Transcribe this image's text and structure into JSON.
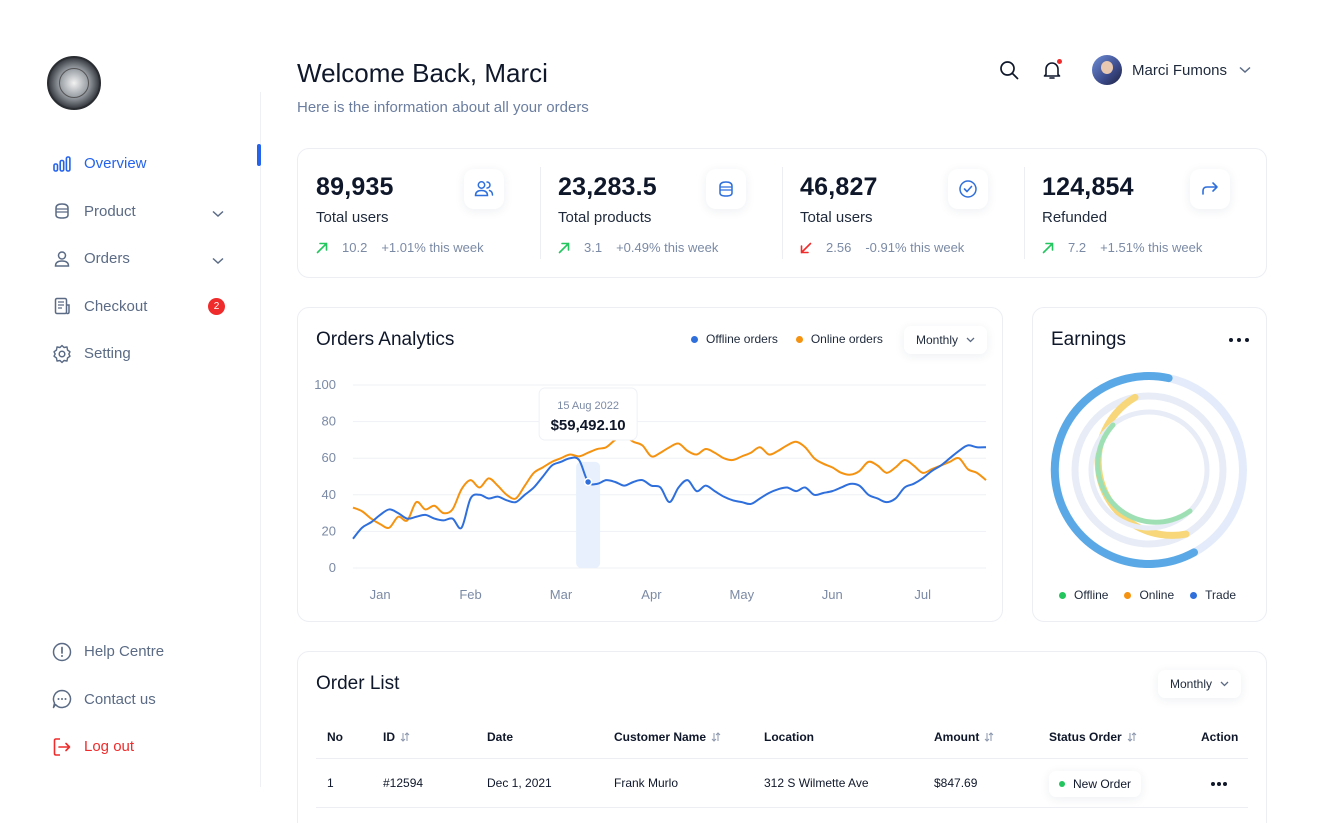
{
  "sidebar": {
    "items": [
      {
        "label": "Overview",
        "icon": "bar-chart-icon"
      },
      {
        "label": "Product",
        "icon": "box-icon"
      },
      {
        "label": "Orders",
        "icon": "user-icon"
      },
      {
        "label": "Checkout",
        "icon": "receipt-icon",
        "badge": "2"
      },
      {
        "label": "Setting",
        "icon": "gear-icon"
      }
    ],
    "bottom": [
      {
        "label": "Help Centre",
        "icon": "info-icon"
      },
      {
        "label": "Contact us",
        "icon": "chat-icon"
      },
      {
        "label": "Log out",
        "icon": "logout-icon"
      }
    ]
  },
  "header": {
    "title": "Welcome Back, Marci",
    "subtitle": "Here is the information about all your orders",
    "user_name": "Marci Fumons"
  },
  "stats": [
    {
      "value": "89,935",
      "label": "Total users",
      "delta": "10.2",
      "change": "+1.01% this week",
      "trend": "up"
    },
    {
      "value": "23,283.5",
      "label": "Total products",
      "delta": "3.1",
      "change": "+0.49% this week",
      "trend": "up"
    },
    {
      "value": "46,827",
      "label": "Total users",
      "delta": "2.56",
      "change": "-0.91% this week",
      "trend": "down"
    },
    {
      "value": "124,854",
      "label": "Refunded",
      "delta": "7.2",
      "change": "+1.51% this week",
      "trend": "up"
    }
  ],
  "analytics": {
    "title": "Orders Analytics",
    "legend_offline": "Offline orders",
    "legend_online": "Online orders",
    "period": "Monthly",
    "tooltip_date": "15 Aug 2022",
    "tooltip_value": "$59,492.10"
  },
  "chart_data": {
    "type": "line",
    "title": "Orders Analytics",
    "categories": [
      "Jan",
      "Feb",
      "Mar",
      "Apr",
      "May",
      "Jun",
      "Jul"
    ],
    "y_ticks": [
      0,
      20,
      40,
      60,
      80,
      100
    ],
    "ylim": [
      0,
      100
    ],
    "xlim": [
      -0.3,
      6.7
    ],
    "grid": true,
    "legend": "top-right",
    "colors": {
      "offline": "#2f6fdc",
      "online": "#f5920f"
    },
    "series": [
      {
        "name": "Offline orders",
        "x": [
          -0.3,
          -0.2,
          -0.1,
          0,
          0.1,
          0.2,
          0.3,
          0.4,
          0.5,
          0.6,
          0.7,
          0.8,
          0.9,
          1.0,
          1.1,
          1.2,
          1.3,
          1.4,
          1.5,
          1.6,
          1.7,
          1.8,
          1.9,
          2.0,
          2.1,
          2.2,
          2.3,
          2.4,
          2.5,
          2.6,
          2.7,
          2.8,
          2.9,
          3.0,
          3.1,
          3.2,
          3.3,
          3.4,
          3.5,
          3.6,
          3.7,
          3.8,
          3.9,
          4.0,
          4.1,
          4.2,
          4.3,
          4.4,
          4.5,
          4.6,
          4.7,
          4.8,
          4.9,
          5.0,
          5.1,
          5.2,
          5.3,
          5.4,
          5.5,
          5.6,
          5.7,
          5.8,
          5.9,
          6.0,
          6.1,
          6.2,
          6.3,
          6.4,
          6.5,
          6.6,
          6.7
        ],
        "y": [
          16,
          22,
          25,
          29,
          32,
          30,
          27,
          28,
          29,
          27,
          26,
          27,
          22,
          38,
          40,
          38,
          39,
          37,
          36,
          40,
          44,
          50,
          56,
          58,
          60,
          59,
          47,
          46,
          48,
          47,
          45,
          47,
          48,
          45,
          44,
          36,
          44,
          48,
          42,
          45,
          42,
          39,
          37,
          36,
          35,
          38,
          41,
          43,
          44,
          42,
          44,
          40,
          41,
          42,
          44,
          46,
          45,
          40,
          38,
          36,
          38,
          44,
          46,
          49,
          53,
          56,
          60,
          64,
          67,
          66,
          66
        ]
      },
      {
        "name": "Online orders",
        "x": [
          -0.3,
          -0.2,
          -0.1,
          0,
          0.1,
          0.2,
          0.3,
          0.4,
          0.5,
          0.6,
          0.7,
          0.8,
          0.9,
          1.0,
          1.1,
          1.2,
          1.3,
          1.4,
          1.5,
          1.6,
          1.7,
          1.8,
          1.9,
          2.0,
          2.1,
          2.2,
          2.3,
          2.4,
          2.5,
          2.6,
          2.7,
          2.8,
          2.9,
          3.0,
          3.1,
          3.2,
          3.3,
          3.4,
          3.5,
          3.6,
          3.7,
          3.8,
          3.9,
          4.0,
          4.1,
          4.2,
          4.3,
          4.4,
          4.5,
          4.6,
          4.7,
          4.8,
          4.9,
          5.0,
          5.1,
          5.2,
          5.3,
          5.4,
          5.5,
          5.6,
          5.7,
          5.8,
          5.9,
          6.0,
          6.1,
          6.2,
          6.3,
          6.4,
          6.5,
          6.6,
          6.7
        ],
        "y": [
          33,
          31,
          27,
          24,
          22,
          28,
          26,
          36,
          32,
          34,
          30,
          32,
          43,
          48,
          44,
          49,
          45,
          40,
          38,
          45,
          52,
          55,
          58,
          60,
          62,
          61,
          63,
          65,
          66,
          70,
          72,
          69,
          67,
          61,
          63,
          66,
          68,
          64,
          62,
          65,
          63,
          60,
          59,
          61,
          63,
          66,
          62,
          64,
          67,
          69,
          66,
          60,
          57,
          55,
          52,
          51,
          53,
          58,
          56,
          52,
          55,
          59,
          56,
          52,
          54,
          56,
          58,
          60,
          54,
          52,
          48
        ]
      }
    ]
  },
  "earnings": {
    "title": "Earnings",
    "legend": [
      {
        "label": "Offline",
        "color": "#22c55e"
      },
      {
        "label": "Online",
        "color": "#f5920f"
      },
      {
        "label": "Trade",
        "color": "#2f6fdc"
      }
    ]
  },
  "orders": {
    "title": "Order List",
    "period": "Monthly",
    "columns": [
      "No",
      "ID",
      "Date",
      "Customer Name",
      "Location",
      "Amount",
      "Status Order",
      "Action"
    ],
    "rows": [
      {
        "no": "1",
        "id": "#12594",
        "date": "Dec 1, 2021",
        "customer": "Frank Murlo",
        "location": "312 S Wilmette Ave",
        "amount": "$847.69",
        "status": "New Order"
      }
    ]
  }
}
